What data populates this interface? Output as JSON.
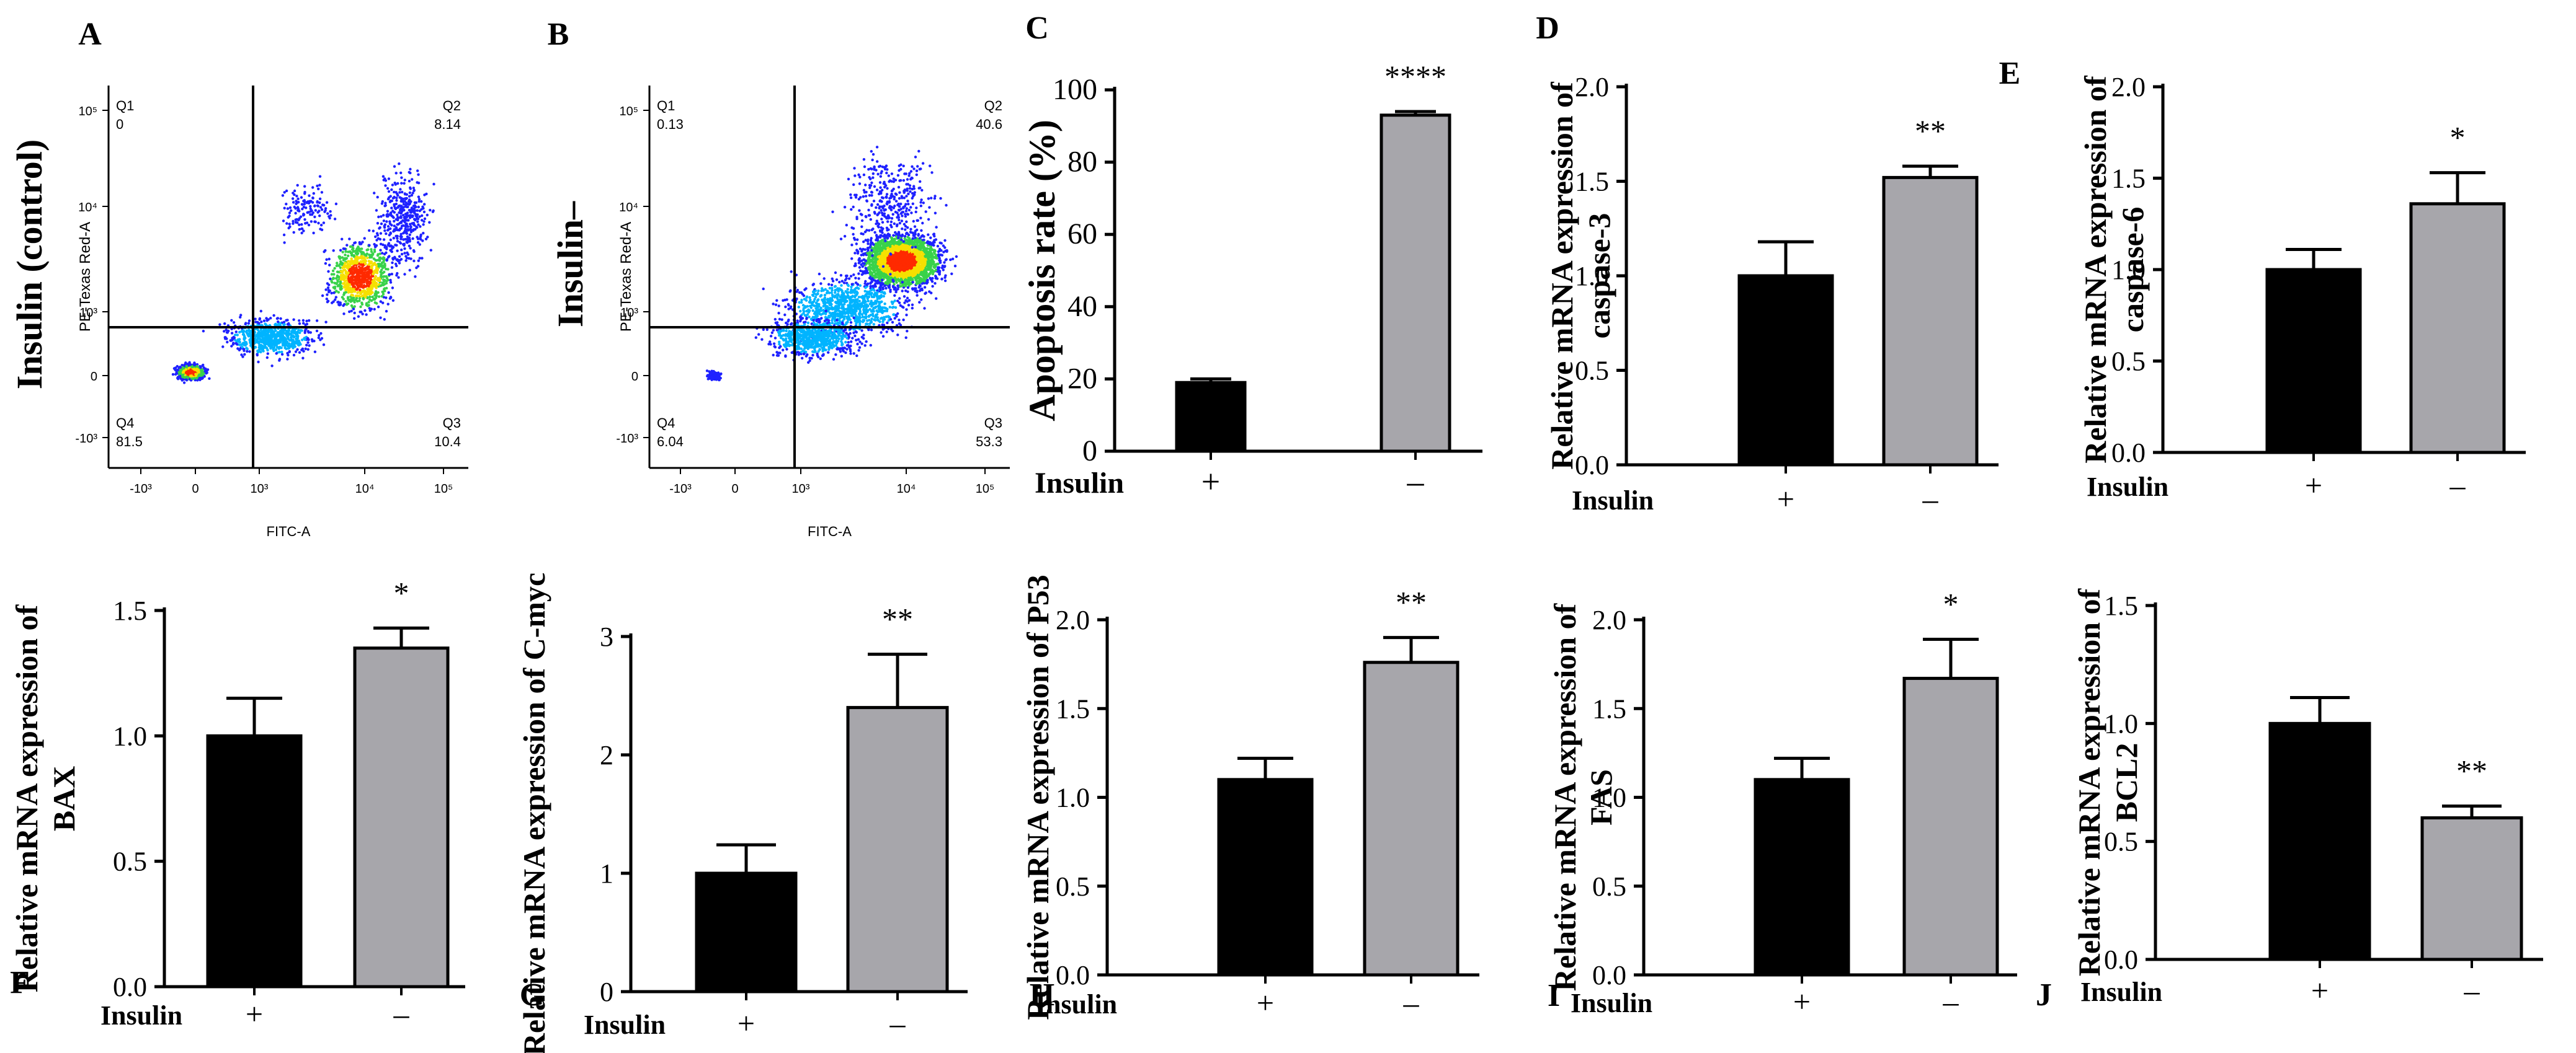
{
  "colors": {
    "bar_positive": "#000000",
    "bar_negative": "#a7a6ab",
    "axis": "#000000",
    "flow_low": "#1f22ff",
    "flow_high": "#ff2a00"
  },
  "chart_data": [
    {
      "panel": "A",
      "type": "scatter",
      "subtype": "flow-cytometry-quadrant",
      "ylabel_outer": "Insulin (control)",
      "ylabel": "PE-Texas Red-A",
      "xlabel": "FITC-A",
      "x_ticks": [
        "-10³",
        "0",
        "10³",
        "10⁴",
        "10⁵"
      ],
      "y_ticks": [
        "10⁵",
        "10⁴",
        "10³",
        "0",
        "-10³"
      ],
      "scale": "biexponential",
      "quadrants": [
        {
          "name": "Q1",
          "value": "0"
        },
        {
          "name": "Q2",
          "value": "8.14"
        },
        {
          "name": "Q3",
          "value": "10.4"
        },
        {
          "name": "Q4",
          "value": "81.5"
        }
      ]
    },
    {
      "panel": "B",
      "type": "scatter",
      "subtype": "flow-cytometry-quadrant",
      "ylabel_outer": "Insulin–",
      "ylabel": "PE-Texas Red-A",
      "xlabel": "FITC-A",
      "x_ticks": [
        "-10³",
        "0",
        "10³",
        "10⁴",
        "10⁵"
      ],
      "y_ticks": [
        "10⁵",
        "10⁴",
        "10³",
        "0",
        "-10³"
      ],
      "scale": "biexponential",
      "quadrants": [
        {
          "name": "Q1",
          "value": "0.13"
        },
        {
          "name": "Q2",
          "value": "40.6"
        },
        {
          "name": "Q3",
          "value": "53.3"
        },
        {
          "name": "Q4",
          "value": "6.04"
        }
      ]
    },
    {
      "panel": "C",
      "type": "bar",
      "ylabel": "Apoptosis rate (%)",
      "group_label": "Insulin",
      "categories": [
        "+",
        "–"
      ],
      "values": [
        19,
        93
      ],
      "errors": [
        1,
        1
      ],
      "ylim": [
        0,
        100
      ],
      "yticks": [
        "0",
        "20",
        "40",
        "60",
        "80",
        "100"
      ],
      "significance": "****"
    },
    {
      "panel": "D",
      "type": "bar",
      "ylabel": "Relative mRNA expression of caspase-3",
      "group_label": "Insulin",
      "categories": [
        "+",
        "–"
      ],
      "values": [
        1.0,
        1.52
      ],
      "errors": [
        0.18,
        0.06
      ],
      "ylim": [
        0,
        2.0
      ],
      "yticks": [
        "0.0",
        "0.5",
        "1.0",
        "1.5",
        "2.0"
      ],
      "significance": "**"
    },
    {
      "panel": "E",
      "type": "bar",
      "ylabel": "Relative mRNA expression of caspase-6",
      "group_label": "Insulin",
      "categories": [
        "+",
        "–"
      ],
      "values": [
        1.0,
        1.36
      ],
      "errors": [
        0.11,
        0.17
      ],
      "ylim": [
        0,
        2.0
      ],
      "yticks": [
        "0.0",
        "0.5",
        "1.0",
        "1.5",
        "2.0"
      ],
      "significance": "*"
    },
    {
      "panel": "F",
      "type": "bar",
      "ylabel": "Relative mRNA expression of BAX",
      "group_label": "Insulin",
      "categories": [
        "+",
        "–"
      ],
      "values": [
        1.0,
        1.35
      ],
      "errors": [
        0.15,
        0.08
      ],
      "ylim": [
        0,
        1.5
      ],
      "yticks": [
        "0.0",
        "0.5",
        "1.0",
        "1.5"
      ],
      "significance": "*"
    },
    {
      "panel": "G",
      "type": "bar",
      "ylabel": "Relative mRNA expression of C-myc",
      "group_label": "Insulin",
      "categories": [
        "+",
        "–"
      ],
      "values": [
        1.0,
        2.4
      ],
      "errors": [
        0.24,
        0.45
      ],
      "ylim": [
        0,
        3
      ],
      "yticks": [
        "0",
        "1",
        "2",
        "3"
      ],
      "significance": "**"
    },
    {
      "panel": "H",
      "type": "bar",
      "ylabel": "Relative mRNA expression of P53",
      "group_label": "Insulin",
      "categories": [
        "+",
        "–"
      ],
      "values": [
        1.1,
        1.76
      ],
      "errors": [
        0.12,
        0.14
      ],
      "ylim": [
        0,
        2.0
      ],
      "yticks": [
        "0.0",
        "0.5",
        "1.0",
        "1.5",
        "2.0"
      ],
      "significance": "**"
    },
    {
      "panel": "I",
      "type": "bar",
      "ylabel": "Relative mRNA expression of FAS",
      "group_label": "Insulin",
      "categories": [
        "+",
        "–"
      ],
      "values": [
        1.1,
        1.67
      ],
      "errors": [
        0.12,
        0.22
      ],
      "ylim": [
        0,
        2.0
      ],
      "yticks": [
        "0.0",
        "0.5",
        "1.0",
        "1.5",
        "2.0"
      ],
      "significance": "*"
    },
    {
      "panel": "J",
      "type": "bar",
      "ylabel": "Relative mRNA expression of BCL2",
      "group_label": "Insulin",
      "categories": [
        "+",
        "–"
      ],
      "values": [
        1.0,
        0.6
      ],
      "errors": [
        0.11,
        0.05
      ],
      "ylim": [
        0,
        1.5
      ],
      "yticks": [
        "0.0",
        "0.5",
        "1.0",
        "1.5"
      ],
      "significance": "**"
    }
  ]
}
